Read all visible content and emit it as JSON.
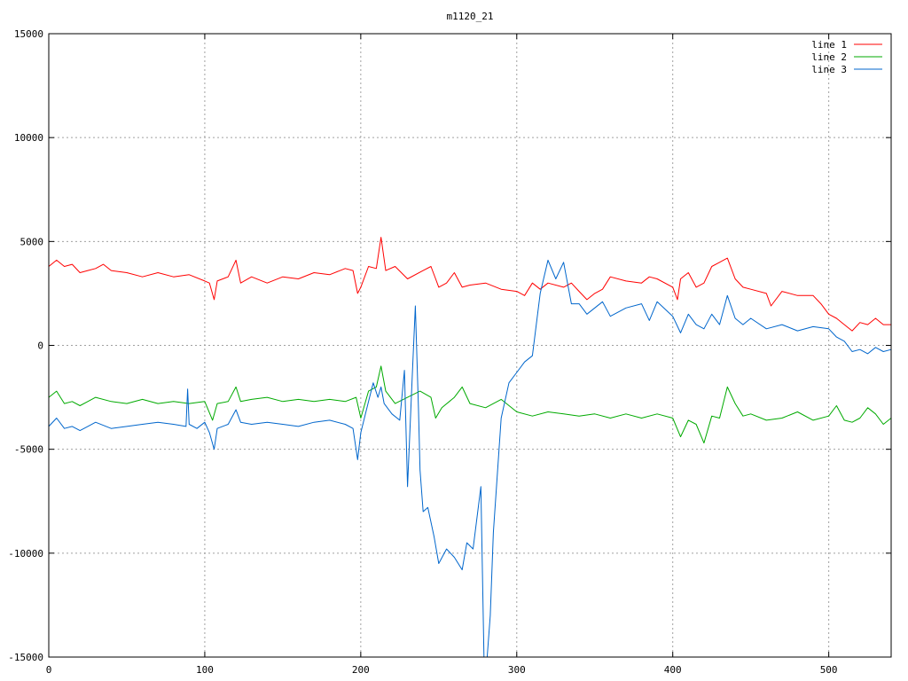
{
  "chart_data": {
    "type": "line",
    "title": "m1120_21",
    "xlabel": "",
    "ylabel": "",
    "xlim": [
      0,
      540
    ],
    "ylim": [
      -15000,
      15000
    ],
    "xticks": [
      0,
      100,
      200,
      300,
      400,
      500
    ],
    "yticks": [
      -15000,
      -10000,
      -5000,
      0,
      5000,
      10000,
      15000
    ],
    "grid": true,
    "legend": "top-right",
    "series": [
      {
        "name": "line 1",
        "color": "#ff0000",
        "points": [
          [
            0,
            3800
          ],
          [
            5,
            4100
          ],
          [
            10,
            3800
          ],
          [
            15,
            3900
          ],
          [
            20,
            3500
          ],
          [
            25,
            3600
          ],
          [
            30,
            3700
          ],
          [
            35,
            3900
          ],
          [
            40,
            3600
          ],
          [
            50,
            3500
          ],
          [
            60,
            3300
          ],
          [
            70,
            3500
          ],
          [
            80,
            3300
          ],
          [
            90,
            3400
          ],
          [
            100,
            3100
          ],
          [
            103,
            3000
          ],
          [
            106,
            2200
          ],
          [
            108,
            3100
          ],
          [
            115,
            3300
          ],
          [
            120,
            4100
          ],
          [
            123,
            3000
          ],
          [
            130,
            3300
          ],
          [
            140,
            3000
          ],
          [
            150,
            3300
          ],
          [
            160,
            3200
          ],
          [
            170,
            3500
          ],
          [
            180,
            3400
          ],
          [
            190,
            3700
          ],
          [
            195,
            3600
          ],
          [
            198,
            2500
          ],
          [
            200,
            2800
          ],
          [
            205,
            3800
          ],
          [
            210,
            3700
          ],
          [
            213,
            5200
          ],
          [
            216,
            3600
          ],
          [
            222,
            3800
          ],
          [
            230,
            3200
          ],
          [
            240,
            3600
          ],
          [
            245,
            3800
          ],
          [
            248,
            3200
          ],
          [
            250,
            2800
          ],
          [
            255,
            3000
          ],
          [
            260,
            3500
          ],
          [
            265,
            2800
          ],
          [
            270,
            2900
          ],
          [
            280,
            3000
          ],
          [
            290,
            2700
          ],
          [
            300,
            2600
          ],
          [
            305,
            2400
          ],
          [
            310,
            3000
          ],
          [
            315,
            2700
          ],
          [
            320,
            3000
          ],
          [
            330,
            2800
          ],
          [
            335,
            3000
          ],
          [
            340,
            2600
          ],
          [
            345,
            2200
          ],
          [
            350,
            2500
          ],
          [
            355,
            2700
          ],
          [
            360,
            3300
          ],
          [
            370,
            3100
          ],
          [
            380,
            3000
          ],
          [
            385,
            3300
          ],
          [
            390,
            3200
          ],
          [
            400,
            2800
          ],
          [
            403,
            2200
          ],
          [
            405,
            3200
          ],
          [
            410,
            3500
          ],
          [
            415,
            2800
          ],
          [
            420,
            3000
          ],
          [
            425,
            3800
          ],
          [
            430,
            4000
          ],
          [
            435,
            4200
          ],
          [
            440,
            3200
          ],
          [
            445,
            2800
          ],
          [
            450,
            2700
          ],
          [
            460,
            2500
          ],
          [
            463,
            1900
          ],
          [
            470,
            2600
          ],
          [
            480,
            2400
          ],
          [
            490,
            2400
          ],
          [
            495,
            2000
          ],
          [
            500,
            1500
          ],
          [
            505,
            1300
          ],
          [
            510,
            1000
          ],
          [
            515,
            700
          ],
          [
            520,
            1100
          ],
          [
            525,
            1000
          ],
          [
            530,
            1300
          ],
          [
            535,
            1000
          ],
          [
            540,
            1000
          ]
        ]
      },
      {
        "name": "line 2",
        "color": "#00aa00",
        "points": [
          [
            0,
            -2500
          ],
          [
            5,
            -2200
          ],
          [
            10,
            -2800
          ],
          [
            15,
            -2700
          ],
          [
            20,
            -2900
          ],
          [
            25,
            -2700
          ],
          [
            30,
            -2500
          ],
          [
            40,
            -2700
          ],
          [
            50,
            -2800
          ],
          [
            60,
            -2600
          ],
          [
            70,
            -2800
          ],
          [
            80,
            -2700
          ],
          [
            90,
            -2800
          ],
          [
            100,
            -2700
          ],
          [
            105,
            -3600
          ],
          [
            108,
            -2800
          ],
          [
            115,
            -2700
          ],
          [
            120,
            -2000
          ],
          [
            123,
            -2700
          ],
          [
            130,
            -2600
          ],
          [
            140,
            -2500
          ],
          [
            150,
            -2700
          ],
          [
            160,
            -2600
          ],
          [
            170,
            -2700
          ],
          [
            180,
            -2600
          ],
          [
            190,
            -2700
          ],
          [
            197,
            -2500
          ],
          [
            200,
            -3500
          ],
          [
            205,
            -2200
          ],
          [
            210,
            -2000
          ],
          [
            213,
            -1000
          ],
          [
            216,
            -2200
          ],
          [
            222,
            -2800
          ],
          [
            230,
            -2500
          ],
          [
            238,
            -2200
          ],
          [
            245,
            -2500
          ],
          [
            248,
            -3500
          ],
          [
            252,
            -3000
          ],
          [
            260,
            -2500
          ],
          [
            265,
            -2000
          ],
          [
            270,
            -2800
          ],
          [
            280,
            -3000
          ],
          [
            290,
            -2600
          ],
          [
            300,
            -3200
          ],
          [
            310,
            -3400
          ],
          [
            320,
            -3200
          ],
          [
            330,
            -3300
          ],
          [
            340,
            -3400
          ],
          [
            350,
            -3300
          ],
          [
            360,
            -3500
          ],
          [
            370,
            -3300
          ],
          [
            380,
            -3500
          ],
          [
            390,
            -3300
          ],
          [
            400,
            -3500
          ],
          [
            405,
            -4400
          ],
          [
            410,
            -3600
          ],
          [
            415,
            -3800
          ],
          [
            420,
            -4700
          ],
          [
            425,
            -3400
          ],
          [
            430,
            -3500
          ],
          [
            435,
            -2000
          ],
          [
            440,
            -2800
          ],
          [
            445,
            -3400
          ],
          [
            450,
            -3300
          ],
          [
            460,
            -3600
          ],
          [
            470,
            -3500
          ],
          [
            480,
            -3200
          ],
          [
            490,
            -3600
          ],
          [
            500,
            -3400
          ],
          [
            505,
            -2900
          ],
          [
            510,
            -3600
          ],
          [
            515,
            -3700
          ],
          [
            520,
            -3500
          ],
          [
            525,
            -3000
          ],
          [
            530,
            -3300
          ],
          [
            535,
            -3800
          ],
          [
            540,
            -3500
          ]
        ]
      },
      {
        "name": "line 3",
        "color": "#0066cc",
        "points": [
          [
            0,
            -3900
          ],
          [
            5,
            -3500
          ],
          [
            10,
            -4000
          ],
          [
            15,
            -3900
          ],
          [
            20,
            -4100
          ],
          [
            25,
            -3900
          ],
          [
            30,
            -3700
          ],
          [
            40,
            -4000
          ],
          [
            50,
            -3900
          ],
          [
            60,
            -3800
          ],
          [
            70,
            -3700
          ],
          [
            80,
            -3800
          ],
          [
            88,
            -3900
          ],
          [
            89,
            -2100
          ],
          [
            90,
            -3800
          ],
          [
            95,
            -4000
          ],
          [
            100,
            -3700
          ],
          [
            103,
            -4200
          ],
          [
            106,
            -5000
          ],
          [
            108,
            -4000
          ],
          [
            115,
            -3800
          ],
          [
            120,
            -3100
          ],
          [
            123,
            -3700
          ],
          [
            130,
            -3800
          ],
          [
            140,
            -3700
          ],
          [
            150,
            -3800
          ],
          [
            160,
            -3900
          ],
          [
            170,
            -3700
          ],
          [
            180,
            -3600
          ],
          [
            190,
            -3800
          ],
          [
            195,
            -4000
          ],
          [
            198,
            -5500
          ],
          [
            200,
            -4200
          ],
          [
            205,
            -2700
          ],
          [
            208,
            -1800
          ],
          [
            211,
            -2500
          ],
          [
            213,
            -2000
          ],
          [
            215,
            -2800
          ],
          [
            220,
            -3300
          ],
          [
            225,
            -3600
          ],
          [
            228,
            -1200
          ],
          [
            230,
            -6800
          ],
          [
            233,
            -1500
          ],
          [
            235,
            1900
          ],
          [
            237,
            -3000
          ],
          [
            238,
            -6000
          ],
          [
            240,
            -8000
          ],
          [
            243,
            -7800
          ],
          [
            247,
            -9200
          ],
          [
            250,
            -10500
          ],
          [
            255,
            -9800
          ],
          [
            260,
            -10200
          ],
          [
            265,
            -10800
          ],
          [
            268,
            -9500
          ],
          [
            272,
            -9800
          ],
          [
            277,
            -6800
          ],
          [
            279,
            -15000
          ],
          [
            281,
            -15000
          ],
          [
            283,
            -13000
          ],
          [
            285,
            -9000
          ],
          [
            290,
            -3500
          ],
          [
            295,
            -1800
          ],
          [
            300,
            -1300
          ],
          [
            305,
            -800
          ],
          [
            310,
            -500
          ],
          [
            315,
            2500
          ],
          [
            320,
            4100
          ],
          [
            325,
            3200
          ],
          [
            330,
            4000
          ],
          [
            335,
            2000
          ],
          [
            340,
            2000
          ],
          [
            345,
            1500
          ],
          [
            350,
            1800
          ],
          [
            355,
            2100
          ],
          [
            360,
            1400
          ],
          [
            370,
            1800
          ],
          [
            380,
            2000
          ],
          [
            385,
            1200
          ],
          [
            390,
            2100
          ],
          [
            400,
            1400
          ],
          [
            405,
            600
          ],
          [
            410,
            1500
          ],
          [
            415,
            1000
          ],
          [
            420,
            800
          ],
          [
            425,
            1500
          ],
          [
            430,
            1000
          ],
          [
            435,
            2400
          ],
          [
            440,
            1300
          ],
          [
            445,
            1000
          ],
          [
            450,
            1300
          ],
          [
            460,
            800
          ],
          [
            470,
            1000
          ],
          [
            480,
            700
          ],
          [
            490,
            900
          ],
          [
            500,
            800
          ],
          [
            505,
            400
          ],
          [
            510,
            200
          ],
          [
            515,
            -300
          ],
          [
            520,
            -200
          ],
          [
            525,
            -400
          ],
          [
            530,
            -100
          ],
          [
            535,
            -300
          ],
          [
            540,
            -200
          ]
        ]
      }
    ]
  }
}
